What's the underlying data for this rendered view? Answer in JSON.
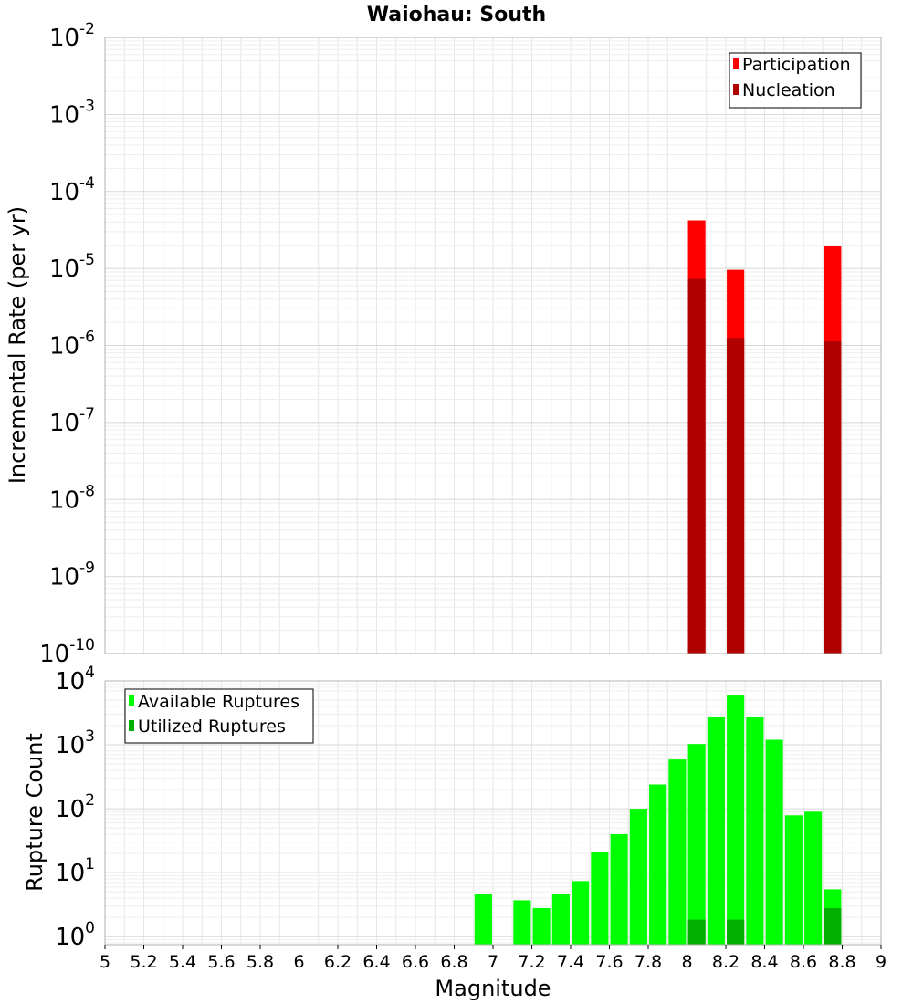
{
  "title": "Waiohau: South",
  "chart_data": [
    {
      "type": "bar",
      "name": "rate-panel",
      "ylabel": "Incremental Rate (per yr)",
      "yscale": "log",
      "ylim": [
        1e-10,
        0.01
      ],
      "xlim": [
        5,
        9
      ],
      "y_tick_mantissa": "10",
      "y_ticks": [
        {
          "exp": -10,
          "label": "-10"
        },
        {
          "exp": -9,
          "label": "-9"
        },
        {
          "exp": -8,
          "label": "-8"
        },
        {
          "exp": -7,
          "label": "-7"
        },
        {
          "exp": -6,
          "label": "-6"
        },
        {
          "exp": -5,
          "label": "-5"
        },
        {
          "exp": -4,
          "label": "-4"
        },
        {
          "exp": -3,
          "label": "-3"
        },
        {
          "exp": -2,
          "label": "-2"
        }
      ],
      "legend_position": "top-right",
      "bar_width": 0.09,
      "series": [
        {
          "name": "Participation",
          "color": "#ff0000",
          "points": [
            {
              "x": 8.05,
              "y": 4.2e-05
            },
            {
              "x": 8.25,
              "y": 9.6e-06
            },
            {
              "x": 8.75,
              "y": 1.95e-05
            }
          ]
        },
        {
          "name": "Nucleation",
          "color": "#b00000",
          "points": [
            {
              "x": 8.05,
              "y": 7.3e-06
            },
            {
              "x": 8.25,
              "y": 1.25e-06
            },
            {
              "x": 8.75,
              "y": 1.13e-06
            }
          ]
        }
      ]
    },
    {
      "type": "bar",
      "name": "count-panel",
      "xlabel": "Magnitude",
      "ylabel": "Rupture Count",
      "yscale": "log",
      "ylim": [
        0.75,
        10000
      ],
      "xlim": [
        5,
        9
      ],
      "x_ticks": [
        "5",
        "5.2",
        "5.4",
        "5.6",
        "5.8",
        "6",
        "6.2",
        "6.4",
        "6.6",
        "6.8",
        "7",
        "7.2",
        "7.4",
        "7.6",
        "7.8",
        "8",
        "8.2",
        "8.4",
        "8.6",
        "8.8",
        "9"
      ],
      "y_tick_mantissa": "10",
      "y_ticks": [
        {
          "exp": 0,
          "label": "0"
        },
        {
          "exp": 1,
          "label": "1"
        },
        {
          "exp": 2,
          "label": "2"
        },
        {
          "exp": 3,
          "label": "3"
        },
        {
          "exp": 4,
          "label": "4"
        }
      ],
      "legend_position": "top-left",
      "bar_width": 0.09,
      "series": [
        {
          "name": "Available Ruptures",
          "color": "#00ff00",
          "points": [
            {
              "x": 6.95,
              "y": 4.6
            },
            {
              "x": 7.15,
              "y": 3.7
            },
            {
              "x": 7.25,
              "y": 2.8
            },
            {
              "x": 7.35,
              "y": 4.6
            },
            {
              "x": 7.45,
              "y": 7.4
            },
            {
              "x": 7.55,
              "y": 21
            },
            {
              "x": 7.65,
              "y": 40
            },
            {
              "x": 7.75,
              "y": 100
            },
            {
              "x": 7.85,
              "y": 240
            },
            {
              "x": 7.95,
              "y": 590
            },
            {
              "x": 8.05,
              "y": 1030
            },
            {
              "x": 8.15,
              "y": 2690
            },
            {
              "x": 8.25,
              "y": 5900
            },
            {
              "x": 8.35,
              "y": 2690
            },
            {
              "x": 8.45,
              "y": 1200
            },
            {
              "x": 8.55,
              "y": 79
            },
            {
              "x": 8.65,
              "y": 90
            },
            {
              "x": 8.75,
              "y": 5.5
            }
          ]
        },
        {
          "name": "Utilized Ruptures",
          "color": "#00b000",
          "points": [
            {
              "x": 8.05,
              "y": 1.85
            },
            {
              "x": 8.25,
              "y": 1.85
            },
            {
              "x": 8.75,
              "y": 2.8
            }
          ]
        }
      ]
    }
  ]
}
